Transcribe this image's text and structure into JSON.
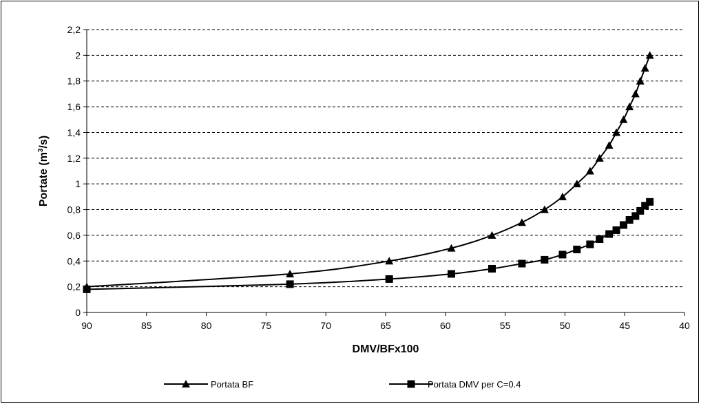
{
  "chart_data": {
    "type": "line",
    "title": "",
    "xlabel": "DMV/BFx100",
    "ylabel": {
      "prefix": "Portate (m",
      "sup": "3",
      "suffix": "/s)"
    },
    "xlim": [
      90,
      40
    ],
    "ylim": [
      0,
      2.2
    ],
    "x_ticks": [
      90,
      85,
      80,
      75,
      70,
      65,
      60,
      55,
      50,
      45,
      40
    ],
    "x_tick_labels": [
      "90",
      "85",
      "80",
      "75",
      "70",
      "65",
      "60",
      "55",
      "50",
      "45",
      "40"
    ],
    "y_ticks": [
      0,
      0.2,
      0.4,
      0.6,
      0.8,
      1,
      1.2,
      1.4,
      1.6,
      1.8,
      2,
      2.2
    ],
    "y_tick_labels": [
      "0",
      "0,2",
      "0,4",
      "0,6",
      "0,8",
      "1",
      "1,2",
      "1,4",
      "1,6",
      "1,8",
      "2",
      "2,2"
    ],
    "grid": "horizontal-dashed",
    "legend_position": "bottom",
    "series": [
      {
        "name": "Portata BF",
        "marker": "triangle",
        "color": "#000000",
        "x": [
          90,
          73,
          64.7,
          59.5,
          56.1,
          53.6,
          51.7,
          50.2,
          49.0,
          47.9,
          47.1,
          46.3,
          45.7,
          45.1,
          44.6,
          44.1,
          43.7,
          43.3,
          42.9
        ],
        "y": [
          0.2,
          0.3,
          0.4,
          0.5,
          0.6,
          0.7,
          0.8,
          0.9,
          1.0,
          1.1,
          1.2,
          1.3,
          1.4,
          1.5,
          1.6,
          1.7,
          1.8,
          1.9,
          2.0
        ]
      },
      {
        "name": "Portata DMV per C=0.4",
        "marker": "square",
        "color": "#000000",
        "x": [
          90,
          73,
          64.7,
          59.5,
          56.1,
          53.6,
          51.7,
          50.2,
          49.0,
          47.9,
          47.1,
          46.3,
          45.7,
          45.1,
          44.6,
          44.1,
          43.7,
          43.3,
          42.9
        ],
        "y": [
          0.18,
          0.22,
          0.26,
          0.3,
          0.34,
          0.38,
          0.41,
          0.45,
          0.49,
          0.53,
          0.57,
          0.61,
          0.64,
          0.68,
          0.72,
          0.75,
          0.79,
          0.83,
          0.86
        ]
      }
    ]
  }
}
